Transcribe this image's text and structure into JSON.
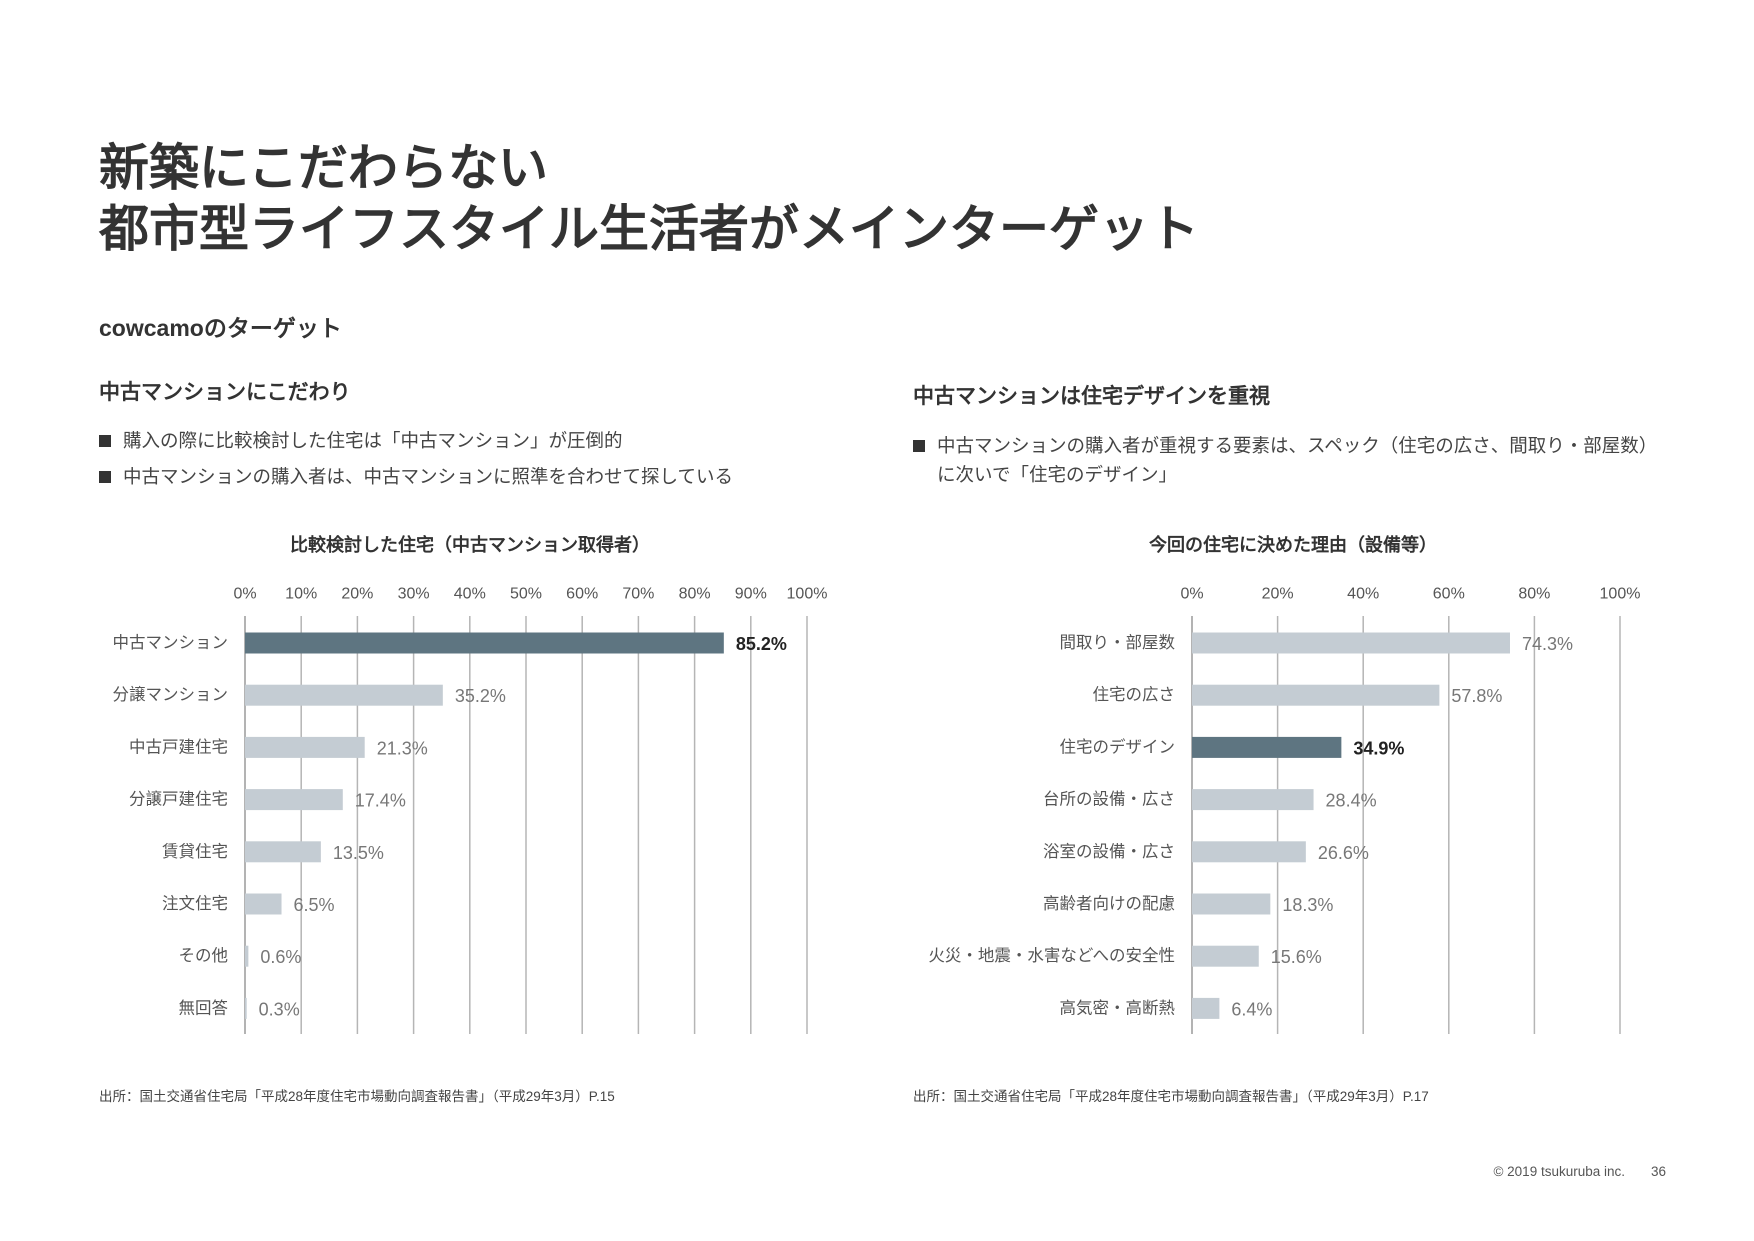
{
  "slide": {
    "title_lines": [
      "新築にこだわらない",
      "都市型ライフスタイル生活者がメインターゲット"
    ],
    "subtitle": "cowcamoのターゲット"
  },
  "left": {
    "heading": "中古マンションにこだわり",
    "bullets": [
      "購入の際に比較検討した住宅は「中古マンション」が圧倒的",
      "中古マンションの購入者は、中古マンションに照準を合わせて探している"
    ],
    "source": "出所：国土交通省住宅局「平成28年度住宅市場動向調査報告書」（平成29年3月）P.15"
  },
  "right": {
    "heading": "中古マンションは住宅デザインを重視",
    "bullet_lines": [
      "中古マンションの購入者が重視する要素は、スペック（住宅の広さ、間取り・部屋数）",
      "に次いで「住宅のデザイン」"
    ],
    "source": "出所：国土交通省住宅局「平成28年度住宅市場動向調査報告書」（平成29年3月）P.17"
  },
  "footer": {
    "copyright": "© 2019 tsukuruba inc.",
    "page_number": "36"
  },
  "chart_data": [
    {
      "type": "bar",
      "orientation": "horizontal",
      "title": "比較検討した住宅（中古マンション取得者）",
      "categories": [
        "中古マンション",
        "分譲マンション",
        "中古戸建住宅",
        "分譲戸建住宅",
        "賃貸住宅",
        "注文住宅",
        "その他",
        "無回答"
      ],
      "values": [
        85.2,
        35.2,
        21.3,
        17.4,
        13.5,
        6.5,
        0.6,
        0.3
      ],
      "data_labels": [
        "85.2%",
        "35.2%",
        "21.3%",
        "17.4%",
        "13.5%",
        "6.5%",
        "0.6%",
        "0.3%"
      ],
      "highlight_index": 0,
      "xlim": [
        0,
        100
      ],
      "tick_values": [
        0,
        10,
        20,
        30,
        40,
        50,
        60,
        70,
        80,
        90,
        100
      ],
      "x_ticks": [
        "0%",
        "10%",
        "20%",
        "30%",
        "40%",
        "50%",
        "60%",
        "70%",
        "80%",
        "90%",
        "100%"
      ],
      "tick_position": "top",
      "grid": true,
      "colors": {
        "highlight": "#5e7581",
        "default": "#c4ccd3"
      }
    },
    {
      "type": "bar",
      "orientation": "horizontal",
      "title": "今回の住宅に決めた理由（設備等）",
      "categories": [
        "間取り・部屋数",
        "住宅の広さ",
        "住宅のデザイン",
        "台所の設備・広さ",
        "浴室の設備・広さ",
        "高齢者向けの配慮",
        "火災・地震・水害などへの安全性",
        "高気密・高断熱"
      ],
      "values": [
        74.3,
        57.8,
        34.9,
        28.4,
        26.6,
        18.3,
        15.6,
        6.4
      ],
      "data_labels": [
        "74.3%",
        "57.8%",
        "34.9%",
        "28.4%",
        "26.6%",
        "18.3%",
        "15.6%",
        "6.4%"
      ],
      "highlight_index": 2,
      "xlim": [
        0,
        100
      ],
      "tick_values": [
        0,
        20,
        40,
        60,
        80,
        100
      ],
      "x_ticks": [
        "0%",
        "20%",
        "40%",
        "60%",
        "80%",
        "100%"
      ],
      "tick_position": "top",
      "grid": true,
      "colors": {
        "highlight": "#5e7581",
        "default": "#c4ccd3"
      }
    }
  ]
}
